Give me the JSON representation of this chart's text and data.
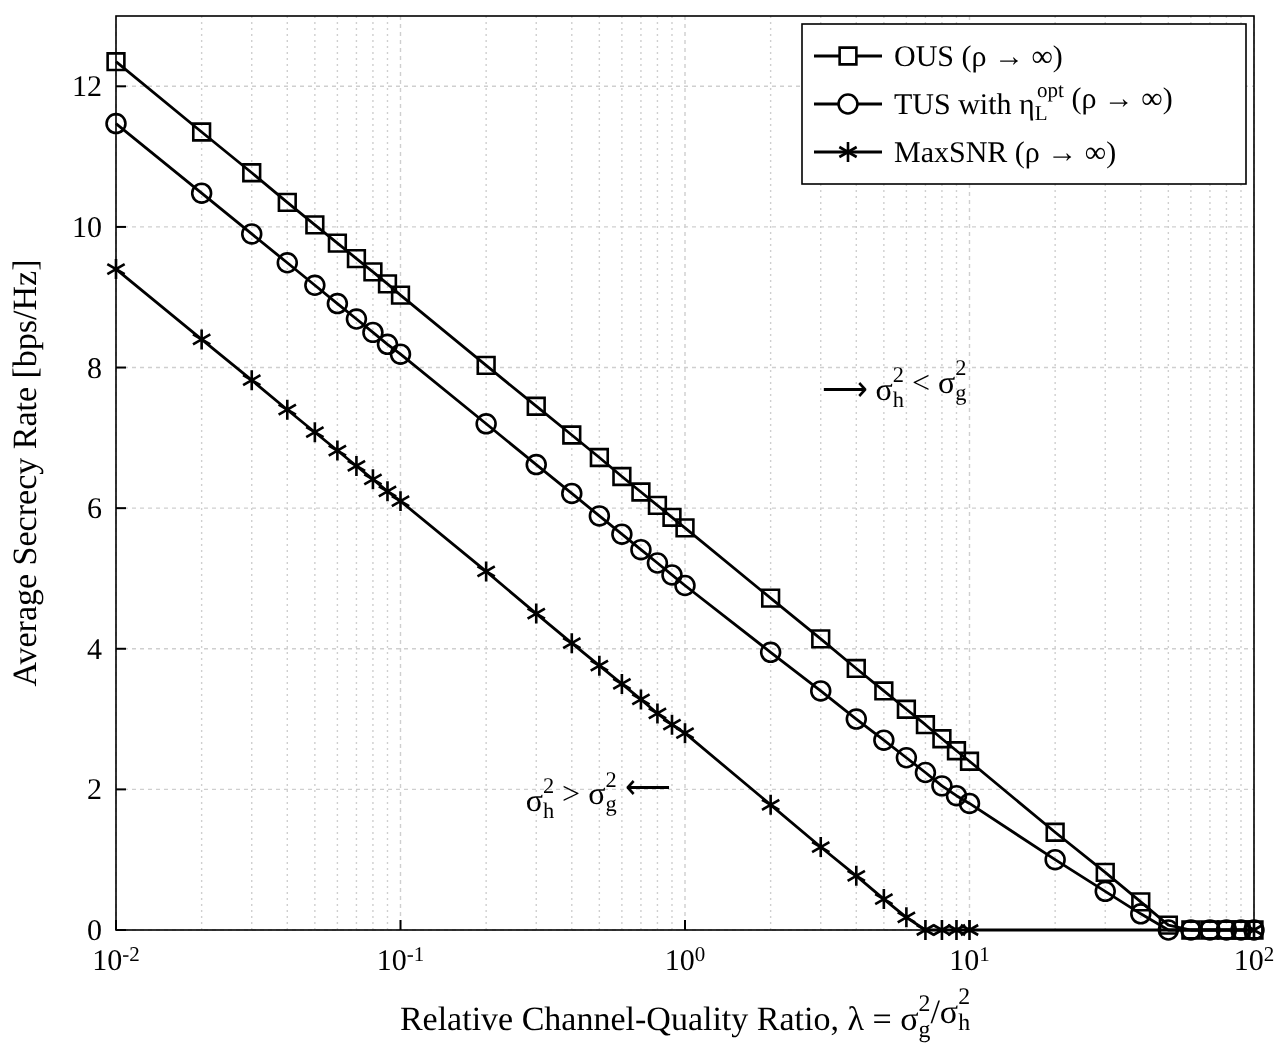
{
  "chart_data": {
    "type": "line",
    "xlabel": "Relative Channel-Quality Ratio, λ = σ$_{g}$$^{2}$/σ$_{h}$$^{2}$",
    "ylabel": "Average Secrecy Rate [bps/Hz]",
    "log": "x",
    "grid": true,
    "legend": "top right",
    "line_style": "solid",
    "xlim": [
      0.01,
      100
    ],
    "xticks": [
      {
        "value": 0.01,
        "label": "10$^{-2}$"
      },
      {
        "value": 0.1,
        "label": "10$^{-1}$"
      },
      {
        "value": 1,
        "label": "10$^{0}$"
      },
      {
        "value": 10,
        "label": "10$^{1}$"
      },
      {
        "value": 100,
        "label": "10$^{2}$"
      }
    ],
    "ylim": [
      0,
      13
    ],
    "yticks": [
      0,
      2,
      4,
      6,
      8,
      10,
      12
    ],
    "x": [
      0.01,
      0.02,
      0.03,
      0.04,
      0.05,
      0.06,
      0.07,
      0.08,
      0.09,
      0.1,
      0.2,
      0.3,
      0.4,
      0.5,
      0.6,
      0.7,
      0.8,
      0.9,
      1,
      2,
      3,
      4,
      5,
      6,
      7,
      8,
      9,
      10,
      20,
      30,
      40,
      50,
      60,
      70,
      80,
      90,
      100
    ],
    "series": [
      {
        "name": "OUS (ρ → ∞)",
        "color": "#000000",
        "marker": "square",
        "values": [
          12.35,
          11.35,
          10.77,
          10.35,
          10.03,
          9.77,
          9.55,
          9.36,
          9.19,
          9.03,
          8.03,
          7.45,
          7.04,
          6.72,
          6.45,
          6.23,
          6.04,
          5.87,
          5.72,
          4.72,
          4.14,
          3.72,
          3.4,
          3.14,
          2.92,
          2.72,
          2.55,
          2.4,
          1.39,
          0.82,
          0.4,
          0.07,
          0,
          0,
          0,
          0,
          0
        ]
      },
      {
        "name": "TUS with η$_{L}$$^{opt}$ (ρ → ∞)",
        "color": "#000000",
        "marker": "circle",
        "values": [
          11.47,
          10.48,
          9.9,
          9.49,
          9.17,
          8.91,
          8.69,
          8.5,
          8.33,
          8.19,
          7.2,
          6.62,
          6.21,
          5.89,
          5.63,
          5.41,
          5.22,
          5.05,
          4.9,
          3.95,
          3.4,
          3.0,
          2.7,
          2.45,
          2.24,
          2.05,
          1.91,
          1.8,
          1.0,
          0.55,
          0.23,
          0,
          0,
          0,
          0,
          0,
          0
        ]
      },
      {
        "name": "MaxSNR (ρ → ∞)",
        "color": "#000000",
        "marker": "cross",
        "x": [
          0.01,
          0.02,
          0.03,
          0.04,
          0.05,
          0.06,
          0.07,
          0.08,
          0.09,
          0.1,
          0.2,
          0.3,
          0.4,
          0.5,
          0.6,
          0.7,
          0.8,
          0.9,
          1,
          2,
          3,
          4,
          5,
          6,
          7,
          8,
          9,
          10,
          100
        ],
        "values": [
          9.4,
          8.4,
          7.82,
          7.4,
          7.08,
          6.82,
          6.6,
          6.41,
          6.24,
          6.1,
          5.1,
          4.5,
          4.08,
          3.76,
          3.5,
          3.28,
          3.08,
          2.92,
          2.8,
          1.78,
          1.18,
          0.77,
          0.44,
          0.18,
          0,
          0,
          0,
          0,
          0
        ]
      }
    ],
    "annotations": [
      "⟶ σ$_{h}$$^{2}$ < σ$_{g}$$^{2}$",
      "σ$_{h}$$^{2}$ > σ$_{g}$$^{2}$ ⟵"
    ]
  }
}
